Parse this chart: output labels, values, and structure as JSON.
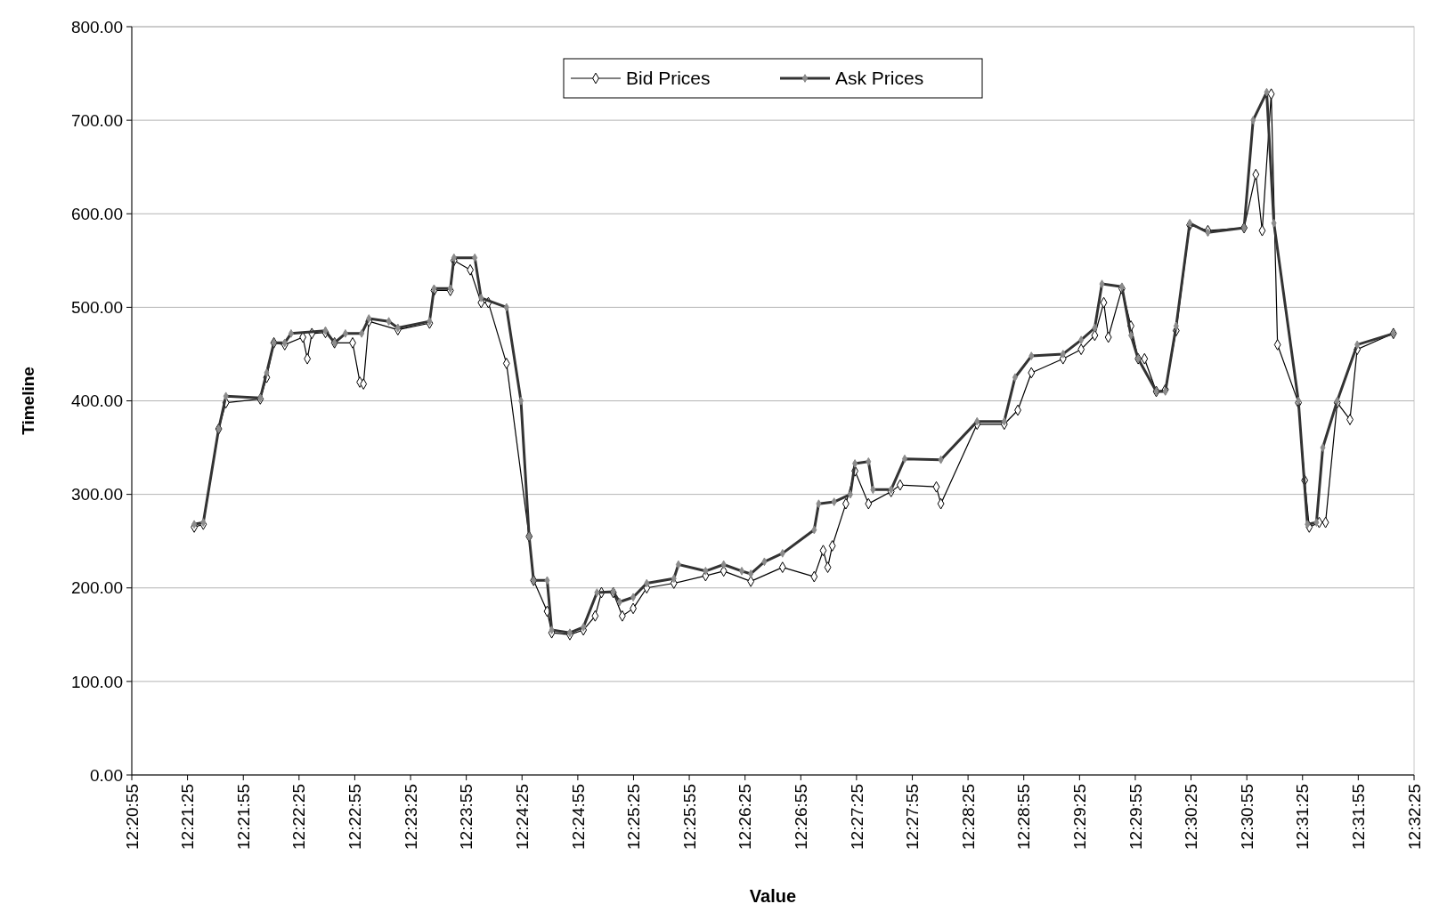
{
  "chart_data": {
    "type": "line",
    "xlabel": "Value",
    "ylabel": "Timeline",
    "xlim": [
      12.34861,
      12.54028
    ],
    "xticks": [
      {
        "value": 12.34861,
        "label": "12:20:55"
      },
      {
        "value": 12.35694,
        "label": "12:21:25"
      },
      {
        "value": 12.36528,
        "label": "12:21:55"
      },
      {
        "value": 12.37361,
        "label": "12:22:25"
      },
      {
        "value": 12.38194,
        "label": "12:22:55"
      },
      {
        "value": 12.39028,
        "label": "12:23:25"
      },
      {
        "value": 12.39861,
        "label": "12:23:55"
      },
      {
        "value": 12.40694,
        "label": "12:24:25"
      },
      {
        "value": 12.41528,
        "label": "12:24:55"
      },
      {
        "value": 12.42361,
        "label": "12:25:25"
      },
      {
        "value": 12.43194,
        "label": "12:25:55"
      },
      {
        "value": 12.44028,
        "label": "12:26:25"
      },
      {
        "value": 12.44861,
        "label": "12:26:55"
      },
      {
        "value": 12.45694,
        "label": "12:27:25"
      },
      {
        "value": 12.46528,
        "label": "12:27:55"
      },
      {
        "value": 12.47361,
        "label": "12:28:25"
      },
      {
        "value": 12.48194,
        "label": "12:28:55"
      },
      {
        "value": 12.49028,
        "label": "12:29:25"
      },
      {
        "value": 12.49861,
        "label": "12:29:55"
      },
      {
        "value": 12.50694,
        "label": "12:30:25"
      },
      {
        "value": 12.51528,
        "label": "12:30:55"
      },
      {
        "value": 12.52361,
        "label": "12:31:25"
      },
      {
        "value": 12.53194,
        "label": "12:31:55"
      },
      {
        "value": 12.54028,
        "label": "12:32:25"
      }
    ],
    "ylim": [
      0,
      800
    ],
    "yticks": [
      {
        "value": 0,
        "label": "0.00"
      },
      {
        "value": 100,
        "label": "100.00"
      },
      {
        "value": 200,
        "label": "200.00"
      },
      {
        "value": 300,
        "label": "300.00"
      },
      {
        "value": 400,
        "label": "400.00"
      },
      {
        "value": 500,
        "label": "500.00"
      },
      {
        "value": 600,
        "label": "600.00"
      },
      {
        "value": 700,
        "label": "700.00"
      },
      {
        "value": 800,
        "label": "800.00"
      }
    ],
    "grid": "y",
    "legend": "top",
    "line_style": "solid",
    "series": [
      {
        "name": "Bid Prices",
        "color": "#000000",
        "marker": "diamond",
        "x": [
          12.35794,
          12.3593,
          12.3616,
          12.36268,
          12.36782,
          12.36877,
          12.36985,
          12.37147,
          12.37418,
          12.37485,
          12.37553,
          12.37756,
          12.37891,
          12.38162,
          12.3827,
          12.38324,
          12.38405,
          12.38838,
          12.39312,
          12.39379,
          12.39623,
          12.39677,
          12.3992,
          12.40083,
          12.40191,
          12.40462,
          12.408,
          12.40867,
          12.4107,
          12.41138,
          12.41409,
          12.41611,
          12.41787,
          12.41882,
          12.42058,
          12.42193,
          12.42356,
          12.42558,
          12.42964,
          12.43438,
          12.43708,
          12.44114,
          12.44588,
          12.45061,
          12.45196,
          12.45264,
          12.45332,
          12.45535,
          12.4567,
          12.45873,
          12.46211,
          12.46346,
          12.46887,
          12.46955,
          12.47496,
          12.47902,
          12.48105,
          12.48308,
          12.48781,
          12.49052,
          12.49255,
          12.4939,
          12.49458,
          12.49661,
          12.49796,
          12.49904,
          12.49999,
          12.50175,
          12.5031,
          12.50472,
          12.50675,
          12.50946,
          12.51487,
          12.51663,
          12.51758,
          12.51893,
          12.51987,
          12.52299,
          12.52393,
          12.52461,
          12.5261,
          12.52705,
          12.5288,
          12.5307,
          12.53178,
          12.53719
        ],
        "values": [
          265,
          268,
          370,
          398,
          402,
          425,
          462,
          460,
          468,
          445,
          472,
          473,
          462,
          462,
          420,
          418,
          485,
          476,
          483,
          518,
          518,
          550,
          540,
          505,
          505,
          440,
          255,
          208,
          175,
          152,
          150,
          155,
          170,
          195,
          195,
          170,
          178,
          200,
          205,
          213,
          218,
          207,
          222,
          212,
          240,
          222,
          245,
          290,
          325,
          290,
          303,
          310,
          308,
          290,
          375,
          375,
          390,
          430,
          445,
          455,
          470,
          505,
          468,
          520,
          480,
          445,
          445,
          410,
          412,
          475,
          588,
          582,
          585,
          642,
          582,
          728,
          460,
          398,
          315,
          265,
          270,
          270,
          398,
          380,
          455,
          472
        ]
      },
      {
        "name": "Ask Prices",
        "color": "#333333",
        "marker": "diamond",
        "x": [
          12.35794,
          12.3593,
          12.3616,
          12.36268,
          12.36782,
          12.36877,
          12.36985,
          12.37147,
          12.37242,
          12.37756,
          12.37891,
          12.38054,
          12.38297,
          12.38405,
          12.38703,
          12.38838,
          12.39312,
          12.39379,
          12.39623,
          12.39677,
          12.39988,
          12.40083,
          12.40462,
          12.40678,
          12.408,
          12.40867,
          12.4107,
          12.41138,
          12.41409,
          12.41611,
          12.41814,
          12.42058,
          12.42153,
          12.42356,
          12.42558,
          12.42964,
          12.43032,
          12.43438,
          12.43708,
          12.43979,
          12.44114,
          12.44317,
          12.44588,
          12.45061,
          12.45129,
          12.45359,
          12.45602,
          12.4567,
          12.45873,
          12.4594,
          12.46211,
          12.46414,
          12.46955,
          12.47496,
          12.47902,
          12.48064,
          12.48308,
          12.48781,
          12.49052,
          12.49255,
          12.49363,
          12.49661,
          12.49796,
          12.49904,
          12.50175,
          12.5031,
          12.50472,
          12.50675,
          12.50946,
          12.51487,
          12.51622,
          12.51825,
          12.51933,
          12.52299,
          12.52434,
          12.52569,
          12.52664,
          12.5288,
          12.53178,
          12.53719
        ],
        "values": [
          268,
          270,
          370,
          405,
          403,
          430,
          462,
          462,
          472,
          475,
          462,
          472,
          472,
          488,
          485,
          478,
          485,
          520,
          520,
          553,
          553,
          510,
          500,
          400,
          255,
          208,
          208,
          155,
          152,
          158,
          195,
          196,
          185,
          190,
          205,
          210,
          225,
          218,
          225,
          218,
          215,
          228,
          237,
          262,
          290,
          292,
          300,
          333,
          335,
          305,
          305,
          338,
          337,
          378,
          378,
          425,
          448,
          450,
          465,
          478,
          525,
          522,
          470,
          445,
          410,
          410,
          480,
          590,
          580,
          585,
          700,
          730,
          590,
          400,
          268,
          270,
          350,
          400,
          460,
          472
        ]
      }
    ]
  }
}
